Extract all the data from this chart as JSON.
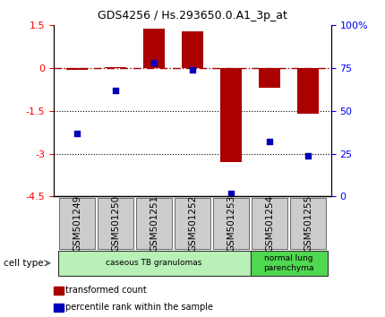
{
  "title": "GDS4256 / Hs.293650.0.A1_3p_at",
  "samples": [
    "GSM501249",
    "GSM501250",
    "GSM501251",
    "GSM501252",
    "GSM501253",
    "GSM501254",
    "GSM501255"
  ],
  "transformed_counts": [
    -0.05,
    0.05,
    1.4,
    1.3,
    -3.3,
    -0.7,
    -1.6
  ],
  "percentile_ranks": [
    37,
    62,
    78,
    74,
    2,
    32,
    24
  ],
  "ylim_left": [
    -4.5,
    1.5
  ],
  "ylim_right": [
    0,
    100
  ],
  "left_ticks": [
    1.5,
    0,
    -1.5,
    -3,
    -4.5
  ],
  "right_ticks": [
    100,
    75,
    50,
    25,
    0
  ],
  "cell_type_groups": [
    {
      "label": "caseous TB granulomas",
      "samples": [
        0,
        1,
        2,
        3,
        4
      ],
      "color": "#b8f0b8"
    },
    {
      "label": "normal lung\nparenchyma",
      "samples": [
        5,
        6
      ],
      "color": "#50d850"
    }
  ],
  "bar_color": "#aa0000",
  "dot_color": "#0000bb",
  "dash_color": "#aa0000",
  "bg_color": "#ffffff",
  "legend_items": [
    {
      "label": "transformed count",
      "color": "#aa0000"
    },
    {
      "label": "percentile rank within the sample",
      "color": "#0000bb"
    }
  ],
  "cell_type_label": "cell type",
  "bar_width": 0.55,
  "title_fontsize": 9,
  "tick_fontsize": 8,
  "label_fontsize": 7.5,
  "legend_fontsize": 7
}
